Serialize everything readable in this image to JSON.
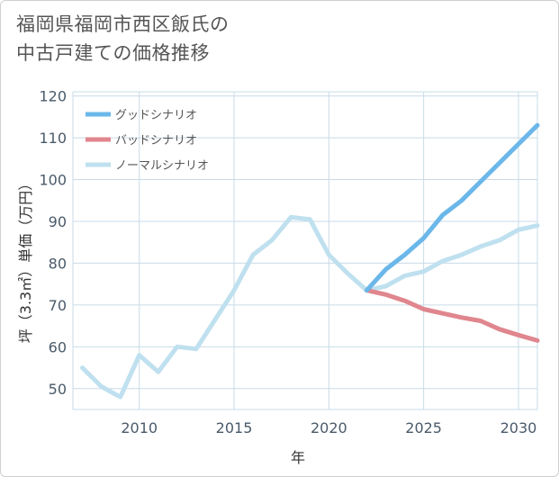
{
  "title_line1": "福岡県福岡市西区飯氏の",
  "title_line2": "中古戸建ての価格推移",
  "chart_data": {
    "type": "line",
    "xlabel": "年",
    "ylabel": "坪（3.3㎡）単価（万円）",
    "xlim": [
      2006.5,
      2031
    ],
    "ylim": [
      45,
      121
    ],
    "xticks": [
      2010,
      2015,
      2020,
      2025,
      2030
    ],
    "yticks": [
      50,
      60,
      70,
      80,
      90,
      100,
      110,
      120
    ],
    "grid": true,
    "legend_position": "top-left",
    "series": [
      {
        "name": "グッドシナリオ",
        "color": "#6bb7ea",
        "x": [
          2022,
          2023,
          2024,
          2025,
          2026,
          2027,
          2028,
          2029,
          2030,
          2031
        ],
        "y": [
          73.5,
          78.5,
          82,
          86,
          91.5,
          95,
          99.5,
          104,
          108.5,
          113
        ]
      },
      {
        "name": "バッドシナリオ",
        "color": "#e0868e",
        "x": [
          2022,
          2023,
          2024,
          2025,
          2026,
          2027,
          2028,
          2029,
          2030,
          2031
        ],
        "y": [
          73.5,
          72.5,
          71,
          69,
          68,
          67,
          66.2,
          64.2,
          62.8,
          61.5
        ]
      },
      {
        "name": "ノーマルシナリオ",
        "color": "#bfe0ef",
        "x": [
          2007,
          2008,
          2009,
          2010,
          2011,
          2012,
          2013,
          2014,
          2015,
          2016,
          2017,
          2018,
          2019,
          2020,
          2021,
          2022,
          2023,
          2024,
          2025,
          2026,
          2027,
          2028,
          2029,
          2030,
          2031
        ],
        "y": [
          55,
          50.5,
          48,
          58,
          54,
          60,
          59.5,
          66.5,
          73.5,
          82,
          85.5,
          91,
          90.5,
          82,
          77.5,
          73.5,
          74.5,
          77,
          78,
          80.5,
          82,
          84,
          85.5,
          88,
          89
        ]
      }
    ]
  }
}
